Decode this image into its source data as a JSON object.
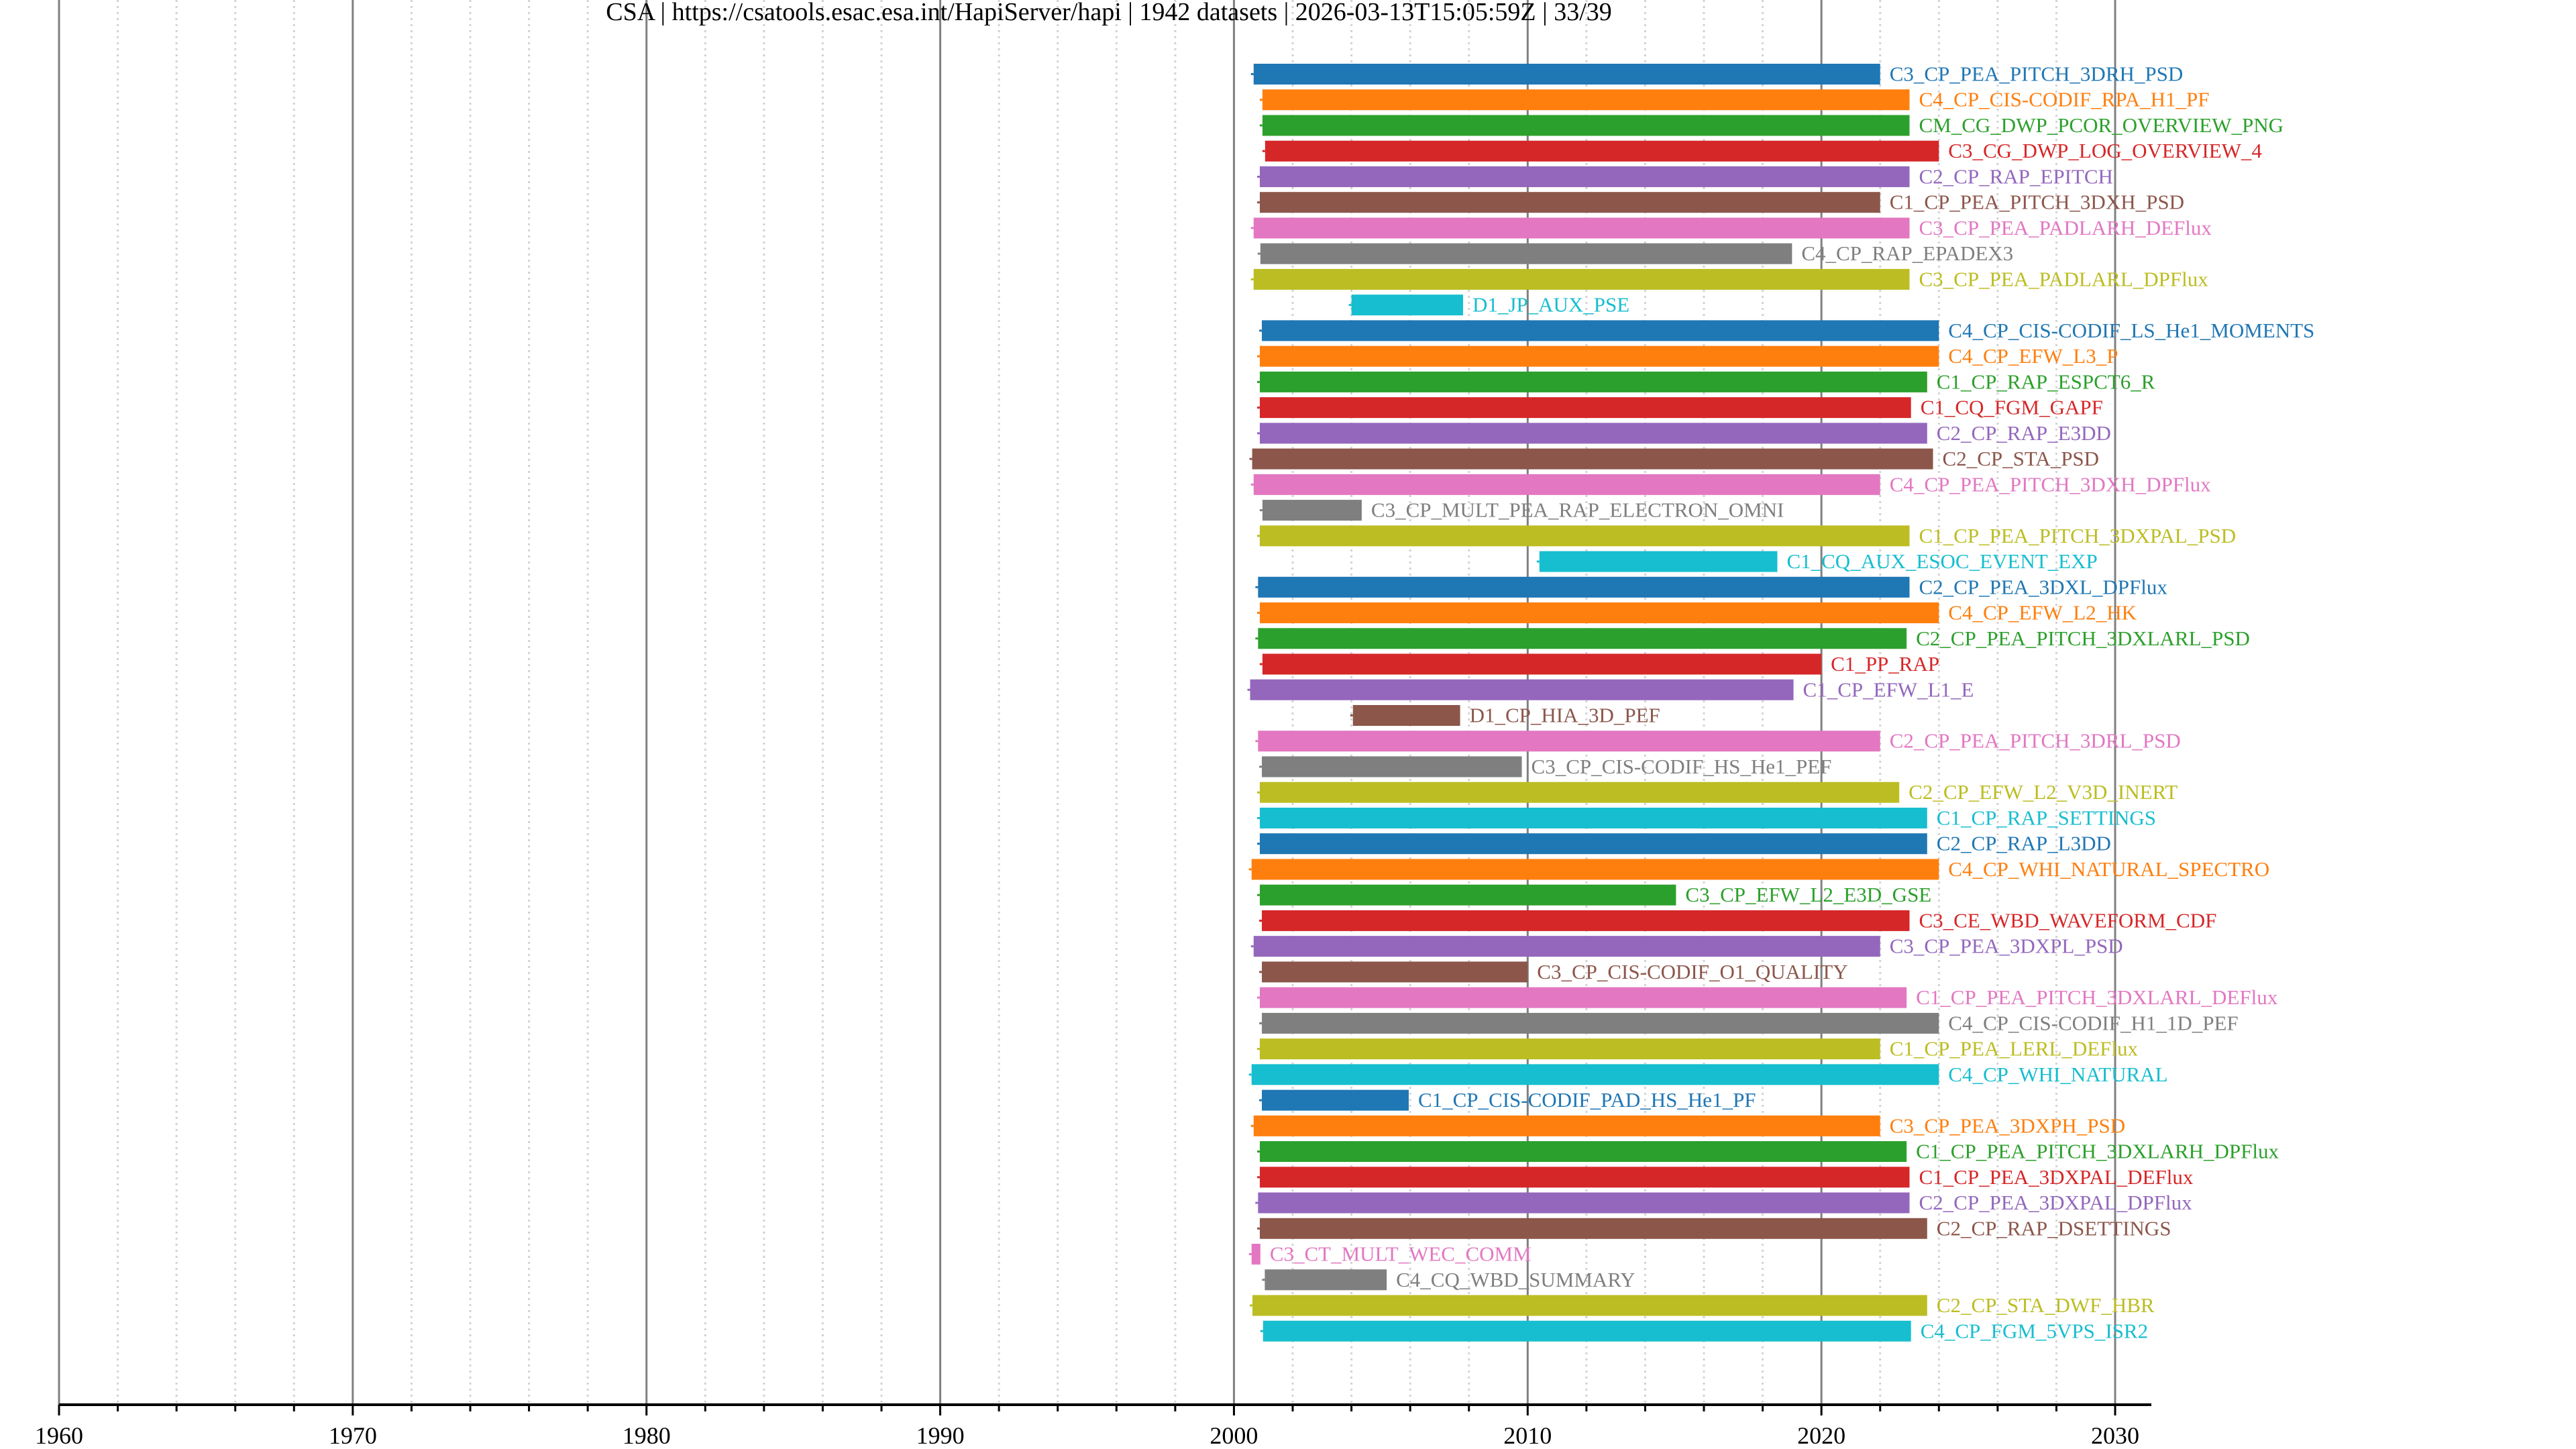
{
  "chart_data": {
    "type": "bar",
    "orientation": "horizontal-timeline",
    "title": "CSA | https://csatools.esac.esa.int/HapiServer/hapi | 1942 datasets | 2026-03-13T15:05:59Z | 33/39",
    "xlabel": "",
    "ylabel": "",
    "xlim": [
      1960,
      2030
    ],
    "x_major_ticks": [
      1960,
      1970,
      1980,
      1990,
      2000,
      2010,
      2020,
      2030
    ],
    "x_tick_labels": [
      "1960",
      "1970",
      "1980",
      "1990",
      "2000",
      "2010",
      "2020",
      "2030"
    ],
    "x_minor_step": 2,
    "grid": true,
    "legend": "none",
    "palette": [
      "#1f77b4",
      "#ff7f0e",
      "#2ca02c",
      "#d62728",
      "#9467bd",
      "#8c564b",
      "#e377c2",
      "#7f7f7f",
      "#bcbd22",
      "#17becf"
    ],
    "series": [
      {
        "name": "C3_CP_PEA_PITCH_3DRH_PSD",
        "start": 2000.67,
        "stop": 2022.0
      },
      {
        "name": "C4_CP_CIS-CODIF_RPA_H1_PF",
        "start": 2000.97,
        "stop": 2023.0
      },
      {
        "name": "CM_CG_DWP_PCOR_OVERVIEW_PNG",
        "start": 2000.97,
        "stop": 2023.0
      },
      {
        "name": "C3_CG_DWP_LOG_OVERVIEW_4",
        "start": 2001.06,
        "stop": 2024.0
      },
      {
        "name": "C2_CP_RAP_EPITCH",
        "start": 2000.88,
        "stop": 2023.0
      },
      {
        "name": "C1_CP_PEA_PITCH_3DXH_PSD",
        "start": 2000.88,
        "stop": 2022.0
      },
      {
        "name": "C3_CP_PEA_PADLARH_DEFlux",
        "start": 2000.67,
        "stop": 2023.0
      },
      {
        "name": "C4_CP_RAP_EPADEX3",
        "start": 2000.9,
        "stop": 2019.0
      },
      {
        "name": "C3_CP_PEA_PADLARL_DPFlux",
        "start": 2000.67,
        "stop": 2023.0
      },
      {
        "name": "D1_JP_AUX_PSE",
        "start": 2004.0,
        "stop": 2007.8
      },
      {
        "name": "C4_CP_CIS-CODIF_LS_He1_MOMENTS",
        "start": 2000.95,
        "stop": 2024.0
      },
      {
        "name": "C4_CP_EFW_L3_P",
        "start": 2000.88,
        "stop": 2024.0
      },
      {
        "name": "C1_CP_RAP_ESPCT6_R",
        "start": 2000.88,
        "stop": 2023.6
      },
      {
        "name": "C1_CQ_FGM_GAPF",
        "start": 2000.88,
        "stop": 2023.05
      },
      {
        "name": "C2_CP_RAP_E3DD",
        "start": 2000.88,
        "stop": 2023.6
      },
      {
        "name": "C2_CP_STA_PSD",
        "start": 2000.62,
        "stop": 2023.8
      },
      {
        "name": "C4_CP_PEA_PITCH_3DXH_DPFlux",
        "start": 2000.67,
        "stop": 2022.0
      },
      {
        "name": "C3_CP_MULT_PEA_RAP_ELECTRON_OMNI",
        "start": 2000.97,
        "stop": 2004.35
      },
      {
        "name": "C1_CP_PEA_PITCH_3DXPAL_PSD",
        "start": 2000.88,
        "stop": 2023.0
      },
      {
        "name": "C1_CQ_AUX_ESOC_EVENT_EXP",
        "start": 2010.4,
        "stop": 2018.5
      },
      {
        "name": "C2_CP_PEA_3DXL_DPFlux",
        "start": 2000.82,
        "stop": 2023.0
      },
      {
        "name": "C4_CP_EFW_L2_HK",
        "start": 2000.88,
        "stop": 2024.0
      },
      {
        "name": "C2_CP_PEA_PITCH_3DXLARL_PSD",
        "start": 2000.82,
        "stop": 2022.9
      },
      {
        "name": "C1_PP_RAP",
        "start": 2000.97,
        "stop": 2020.0
      },
      {
        "name": "C1_CP_EFW_L1_E",
        "start": 2000.55,
        "stop": 2019.05
      },
      {
        "name": "D1_CP_HIA_3D_PEF",
        "start": 2004.05,
        "stop": 2007.7
      },
      {
        "name": "C2_CP_PEA_PITCH_3DRL_PSD",
        "start": 2000.82,
        "stop": 2022.0
      },
      {
        "name": "C3_CP_CIS-CODIF_HS_He1_PEF",
        "start": 2000.95,
        "stop": 2009.8
      },
      {
        "name": "C2_CP_EFW_L2_V3D_INERT",
        "start": 2000.88,
        "stop": 2022.65
      },
      {
        "name": "C1_CP_RAP_SETTINGS",
        "start": 2000.88,
        "stop": 2023.6
      },
      {
        "name": "C2_CP_RAP_L3DD",
        "start": 2000.88,
        "stop": 2023.6
      },
      {
        "name": "C4_CP_WHI_NATURAL_SPECTRO",
        "start": 2000.6,
        "stop": 2024.0
      },
      {
        "name": "C3_CP_EFW_L2_E3D_GSE",
        "start": 2000.88,
        "stop": 2015.05
      },
      {
        "name": "C3_CE_WBD_WAVEFORM_CDF",
        "start": 2000.95,
        "stop": 2023.0
      },
      {
        "name": "C3_CP_PEA_3DXPL_PSD",
        "start": 2000.67,
        "stop": 2022.0
      },
      {
        "name": "C3_CP_CIS-CODIF_O1_QUALITY",
        "start": 2000.95,
        "stop": 2010.0
      },
      {
        "name": "C1_CP_PEA_PITCH_3DXLARL_DEFlux",
        "start": 2000.88,
        "stop": 2022.9
      },
      {
        "name": "C4_CP_CIS-CODIF_H1_1D_PEF",
        "start": 2000.95,
        "stop": 2024.0
      },
      {
        "name": "C1_CP_PEA_LERL_DEFlux",
        "start": 2000.88,
        "stop": 2022.0
      },
      {
        "name": "C4_CP_WHI_NATURAL",
        "start": 2000.6,
        "stop": 2024.0
      },
      {
        "name": "C1_CP_CIS-CODIF_PAD_HS_He1_PF",
        "start": 2000.95,
        "stop": 2005.95
      },
      {
        "name": "C3_CP_PEA_3DXPH_PSD",
        "start": 2000.67,
        "stop": 2022.0
      },
      {
        "name": "C1_CP_PEA_PITCH_3DXLARH_DPFlux",
        "start": 2000.88,
        "stop": 2022.9
      },
      {
        "name": "C1_CP_PEA_3DXPAL_DEFlux",
        "start": 2000.88,
        "stop": 2023.0
      },
      {
        "name": "C2_CP_PEA_3DXPAL_DPFlux",
        "start": 2000.82,
        "stop": 2023.0
      },
      {
        "name": "C2_CP_RAP_DSETTINGS",
        "start": 2000.88,
        "stop": 2023.6
      },
      {
        "name": "C3_CT_MULT_WEC_COMM",
        "start": 2000.6,
        "stop": 2000.9
      },
      {
        "name": "C4_CQ_WBD_SUMMARY",
        "start": 2001.05,
        "stop": 2005.2
      },
      {
        "name": "C2_CP_STA_DWF_HBR",
        "start": 2000.63,
        "stop": 2023.6
      },
      {
        "name": "C4_CP_FGM_5VPS_ISR2",
        "start": 2000.99,
        "stop": 2023.05
      }
    ]
  }
}
